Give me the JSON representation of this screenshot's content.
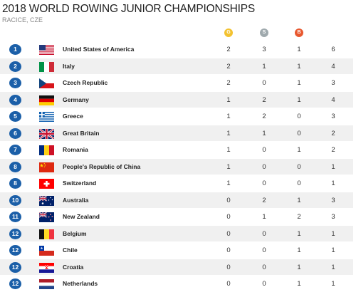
{
  "header": {
    "title": "2018 WORLD ROWING JUNIOR CHAMPIONSHIPS",
    "subtitle": "RACICE, CZE"
  },
  "columns": {
    "gold": "G",
    "silver": "S",
    "bronze": "B"
  },
  "colors": {
    "gold": "#f3c230",
    "silver": "#9fa9ad",
    "bronze": "#e8582f",
    "rank_badge": "#1b5fa8"
  },
  "rows": [
    {
      "rank": "1",
      "country": "United States of America",
      "flag": "usa-flag-icon",
      "gold": "2",
      "silver": "3",
      "bronze": "1",
      "total": "6"
    },
    {
      "rank": "2",
      "country": "Italy",
      "flag": "italy-flag-icon",
      "gold": "2",
      "silver": "1",
      "bronze": "1",
      "total": "4"
    },
    {
      "rank": "3",
      "country": "Czech Republic",
      "flag": "czech-flag-icon",
      "gold": "2",
      "silver": "0",
      "bronze": "1",
      "total": "3"
    },
    {
      "rank": "4",
      "country": "Germany",
      "flag": "germany-flag-icon",
      "gold": "1",
      "silver": "2",
      "bronze": "1",
      "total": "4"
    },
    {
      "rank": "5",
      "country": "Greece",
      "flag": "greece-flag-icon",
      "gold": "1",
      "silver": "2",
      "bronze": "0",
      "total": "3"
    },
    {
      "rank": "6",
      "country": "Great Britain",
      "flag": "great-britain-flag-icon",
      "gold": "1",
      "silver": "1",
      "bronze": "0",
      "total": "2"
    },
    {
      "rank": "7",
      "country": "Romania",
      "flag": "romania-flag-icon",
      "gold": "1",
      "silver": "0",
      "bronze": "1",
      "total": "2"
    },
    {
      "rank": "8",
      "country": "People's Republic of China",
      "flag": "china-flag-icon",
      "gold": "1",
      "silver": "0",
      "bronze": "0",
      "total": "1"
    },
    {
      "rank": "8",
      "country": "Switzerland",
      "flag": "switzerland-flag-icon",
      "gold": "1",
      "silver": "0",
      "bronze": "0",
      "total": "1"
    },
    {
      "rank": "10",
      "country": "Australia",
      "flag": "australia-flag-icon",
      "gold": "0",
      "silver": "2",
      "bronze": "1",
      "total": "3"
    },
    {
      "rank": "11",
      "country": "New Zealand",
      "flag": "new-zealand-flag-icon",
      "gold": "0",
      "silver": "1",
      "bronze": "2",
      "total": "3"
    },
    {
      "rank": "12",
      "country": "Belgium",
      "flag": "belgium-flag-icon",
      "gold": "0",
      "silver": "0",
      "bronze": "1",
      "total": "1"
    },
    {
      "rank": "12",
      "country": "Chile",
      "flag": "chile-flag-icon",
      "gold": "0",
      "silver": "0",
      "bronze": "1",
      "total": "1"
    },
    {
      "rank": "12",
      "country": "Croatia",
      "flag": "croatia-flag-icon",
      "gold": "0",
      "silver": "0",
      "bronze": "1",
      "total": "1"
    },
    {
      "rank": "12",
      "country": "Netherlands",
      "flag": "netherlands-flag-icon",
      "gold": "0",
      "silver": "0",
      "bronze": "1",
      "total": "1"
    }
  ]
}
